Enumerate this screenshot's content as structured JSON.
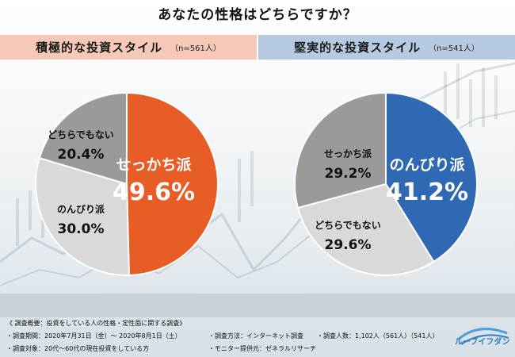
{
  "title": "あなたの性格はどちらですか？",
  "chart_data": [
    {
      "type": "pie",
      "title": "積極的な投資スタイル",
      "n_label": "（n=561人）",
      "slices": [
        {
          "label": "せっかち派",
          "value": 49.6,
          "value_label": "49.6%",
          "color": "#e85c25"
        },
        {
          "label": "のんびり派",
          "value": 30.0,
          "value_label": "30.0%",
          "color": "#d9d9d9"
        },
        {
          "label": "どちらでもない",
          "value": 20.4,
          "value_label": "20.4%",
          "color": "#9a9a9a"
        }
      ]
    },
    {
      "type": "pie",
      "title": "堅実的な投資スタイル",
      "n_label": "（n=541人）",
      "slices": [
        {
          "label": "のんびり派",
          "value": 41.2,
          "value_label": "41.2%",
          "color": "#2f68b3"
        },
        {
          "label": "どちらでもない",
          "value": 29.6,
          "value_label": "29.6%",
          "color": "#d9d9d9"
        },
        {
          "label": "せっかち派",
          "value": 29.2,
          "value_label": "29.2%",
          "color": "#9a9a9a"
        }
      ]
    }
  ],
  "footer": {
    "overview": "《 調査概要：投資をしている人の性格・定性面に関する調査》",
    "period": "・調査期間：2020年7月31日（金）～ 2020年8月1日（土）",
    "target": "・調査対象：20代～60代の現在投資をしている方",
    "method": "・調査方法：インターネット調査",
    "provider": "・モニター提供元：ゼネラルリサーチ",
    "count": "・調査人数：1,102人（561人）（541人）"
  },
  "logo": {
    "text": "ルーブイフダン"
  }
}
